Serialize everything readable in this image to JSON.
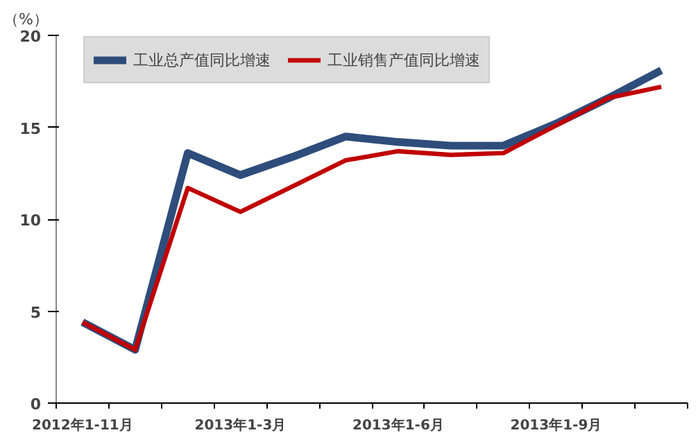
{
  "chart_data": {
    "type": "line",
    "ylabel": "（%）",
    "categories": [
      "2012年1-11月",
      null,
      null,
      "2013年1-3月",
      null,
      null,
      "2013年1-6月",
      null,
      null,
      "2013年1-9月",
      null,
      null
    ],
    "series": [
      {
        "name": "工业总产值同比增速",
        "color": "#2e4d7b",
        "values": [
          4.4,
          2.9,
          13.6,
          12.4,
          13.4,
          14.5,
          14.2,
          14.0,
          14.0,
          15.2,
          16.6,
          18.1
        ]
      },
      {
        "name": "工业销售产值同比增速",
        "color": "#c00000",
        "values": [
          4.4,
          2.9,
          11.7,
          10.4,
          11.8,
          13.2,
          13.7,
          13.5,
          13.6,
          15.1,
          16.6,
          17.2
        ]
      }
    ],
    "ylim": [
      0,
      20
    ],
    "yticks": [
      0,
      5,
      10,
      15,
      20
    ],
    "grid": false,
    "legend": "top"
  }
}
